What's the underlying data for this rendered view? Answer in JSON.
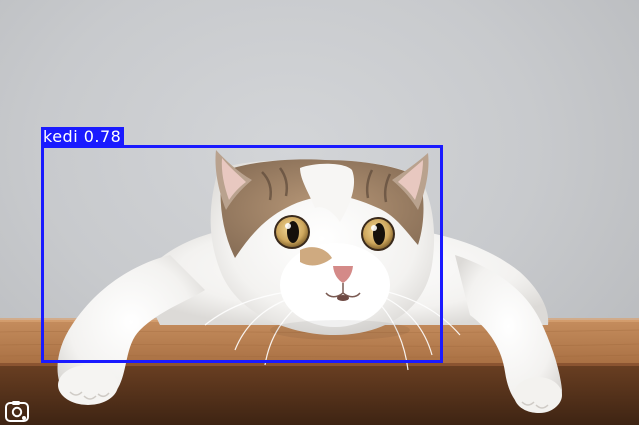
{
  "detection": {
    "label": "kedi",
    "confidence": "0.78",
    "label_text": "kedi 0.78",
    "box_color": "#1a1aff"
  },
  "icons": {
    "corner_icon": "visual-search-icon"
  }
}
